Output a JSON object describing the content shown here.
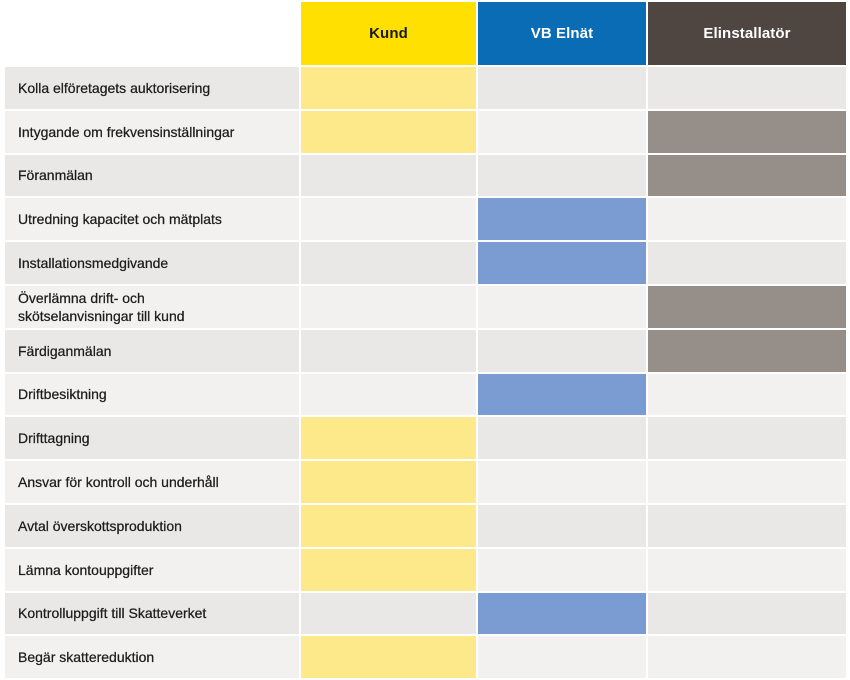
{
  "columns": [
    "Kund",
    "VB Elnät",
    "Elinstallatör"
  ],
  "colors": {
    "header_bg": [
      "#FFE000",
      "#0B6CB6",
      "#4F4641"
    ],
    "header_text": [
      "#1A1A1A",
      "#FFFFFF",
      "#FFFFFF"
    ],
    "fill": [
      "#FDE98A",
      "#7B9CD3",
      "#968E88"
    ],
    "row_stripes": [
      "#EAE8E6",
      "#F2F1EF"
    ],
    "label_text": "#1C1C1C"
  },
  "rows": [
    {
      "label": "Kolla elföretagets auktorisering",
      "marks": [
        true,
        false,
        false
      ]
    },
    {
      "label": "Intygande om frekvensinställningar",
      "marks": [
        true,
        false,
        true
      ]
    },
    {
      "label": "Föranmälan",
      "marks": [
        false,
        false,
        true
      ]
    },
    {
      "label": "Utredning kapacitet och mätplats",
      "marks": [
        false,
        true,
        false
      ]
    },
    {
      "label": "Installationsmedgivande",
      "marks": [
        false,
        true,
        false
      ]
    },
    {
      "label": "Överlämna drift- och\nskötselanvisningar till kund",
      "marks": [
        false,
        false,
        true
      ]
    },
    {
      "label": "Färdiganmälan",
      "marks": [
        false,
        false,
        true
      ]
    },
    {
      "label": "Driftbesiktning",
      "marks": [
        false,
        true,
        false
      ]
    },
    {
      "label": "Drifttagning",
      "marks": [
        true,
        false,
        false
      ]
    },
    {
      "label": "Ansvar för kontroll och underhåll",
      "marks": [
        true,
        false,
        false
      ]
    },
    {
      "label": "Avtal överskottsproduktion",
      "marks": [
        true,
        false,
        false
      ]
    },
    {
      "label": "Lämna kontouppgifter",
      "marks": [
        true,
        false,
        false
      ]
    },
    {
      "label": "Kontrolluppgift till Skatteverket",
      "marks": [
        false,
        true,
        false
      ]
    },
    {
      "label": "Begär skattereduktion",
      "marks": [
        true,
        false,
        false
      ]
    }
  ]
}
